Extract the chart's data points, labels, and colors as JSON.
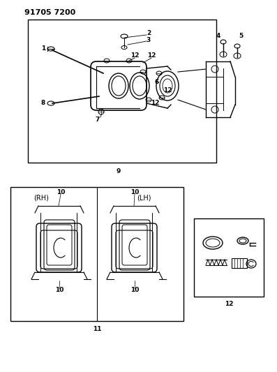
{
  "title": "91705 7200",
  "bg_color": "#ffffff",
  "line_color": "#000000",
  "fig_width": 3.97,
  "fig_height": 5.33,
  "dpi": 100
}
